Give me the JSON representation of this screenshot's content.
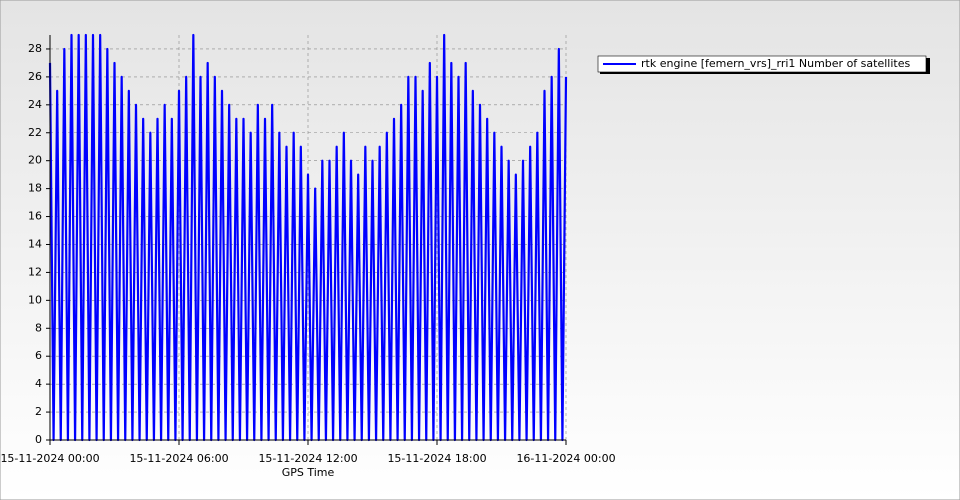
{
  "chart_data": {
    "type": "line",
    "x_label": "GPS Time",
    "x": [
      "15-11-2024 00:00",
      "15-11-2024 00:10",
      "15-11-2024 00:20",
      "15-11-2024 00:30",
      "15-11-2024 00:40",
      "15-11-2024 00:50",
      "15-11-2024 01:00",
      "15-11-2024 01:10",
      "15-11-2024 01:20",
      "15-11-2024 01:30",
      "15-11-2024 01:40",
      "15-11-2024 01:50",
      "15-11-2024 02:00",
      "15-11-2024 02:10",
      "15-11-2024 02:20",
      "15-11-2024 02:30",
      "15-11-2024 02:40",
      "15-11-2024 02:50",
      "15-11-2024 03:00",
      "15-11-2024 03:10",
      "15-11-2024 03:20",
      "15-11-2024 03:30",
      "15-11-2024 03:40",
      "15-11-2024 03:50",
      "15-11-2024 04:00",
      "15-11-2024 04:10",
      "15-11-2024 04:20",
      "15-11-2024 04:30",
      "15-11-2024 04:40",
      "15-11-2024 04:50",
      "15-11-2024 05:00",
      "15-11-2024 05:10",
      "15-11-2024 05:20",
      "15-11-2024 05:30",
      "15-11-2024 05:40",
      "15-11-2024 05:50",
      "15-11-2024 06:00",
      "15-11-2024 06:10",
      "15-11-2024 06:20",
      "15-11-2024 06:30",
      "15-11-2024 06:40",
      "15-11-2024 06:50",
      "15-11-2024 07:00",
      "15-11-2024 07:10",
      "15-11-2024 07:20",
      "15-11-2024 07:30",
      "15-11-2024 07:40",
      "15-11-2024 07:50",
      "15-11-2024 08:00",
      "15-11-2024 08:10",
      "15-11-2024 08:20",
      "15-11-2024 08:30",
      "15-11-2024 08:40",
      "15-11-2024 08:50",
      "15-11-2024 09:00",
      "15-11-2024 09:10",
      "15-11-2024 09:20",
      "15-11-2024 09:30",
      "15-11-2024 09:40",
      "15-11-2024 09:50",
      "15-11-2024 10:00",
      "15-11-2024 10:10",
      "15-11-2024 10:20",
      "15-11-2024 10:30",
      "15-11-2024 10:40",
      "15-11-2024 10:50",
      "15-11-2024 11:00",
      "15-11-2024 11:10",
      "15-11-2024 11:20",
      "15-11-2024 11:30",
      "15-11-2024 11:40",
      "15-11-2024 11:50",
      "15-11-2024 12:00",
      "15-11-2024 12:10",
      "15-11-2024 12:20",
      "15-11-2024 12:30",
      "15-11-2024 12:40",
      "15-11-2024 12:50",
      "15-11-2024 13:00",
      "15-11-2024 13:10",
      "15-11-2024 13:20",
      "15-11-2024 13:30",
      "15-11-2024 13:40",
      "15-11-2024 13:50",
      "15-11-2024 14:00",
      "15-11-2024 14:10",
      "15-11-2024 14:20",
      "15-11-2024 14:30",
      "15-11-2024 14:40",
      "15-11-2024 14:50",
      "15-11-2024 15:00",
      "15-11-2024 15:10",
      "15-11-2024 15:20",
      "15-11-2024 15:30",
      "15-11-2024 15:40",
      "15-11-2024 15:50",
      "15-11-2024 16:00",
      "15-11-2024 16:10",
      "15-11-2024 16:20",
      "15-11-2024 16:30",
      "15-11-2024 16:40",
      "15-11-2024 16:50",
      "15-11-2024 17:00",
      "15-11-2024 17:10",
      "15-11-2024 17:20",
      "15-11-2024 17:30",
      "15-11-2024 17:40",
      "15-11-2024 17:50",
      "15-11-2024 18:00",
      "15-11-2024 18:10",
      "15-11-2024 18:20",
      "15-11-2024 18:30",
      "15-11-2024 18:40",
      "15-11-2024 18:50",
      "15-11-2024 19:00",
      "15-11-2024 19:10",
      "15-11-2024 19:20",
      "15-11-2024 19:30",
      "15-11-2024 19:40",
      "15-11-2024 19:50",
      "15-11-2024 20:00",
      "15-11-2024 20:10",
      "15-11-2024 20:20",
      "15-11-2024 20:30",
      "15-11-2024 20:40",
      "15-11-2024 20:50",
      "15-11-2024 21:00",
      "15-11-2024 21:10",
      "15-11-2024 21:20",
      "15-11-2024 21:30",
      "15-11-2024 21:40",
      "15-11-2024 21:50",
      "15-11-2024 22:00",
      "15-11-2024 22:10",
      "15-11-2024 22:20",
      "15-11-2024 22:30",
      "15-11-2024 22:40",
      "15-11-2024 22:50",
      "15-11-2024 23:00",
      "15-11-2024 23:10",
      "15-11-2024 23:20",
      "15-11-2024 23:30",
      "15-11-2024 23:40",
      "15-11-2024 23:50",
      "16-11-2024 00:00"
    ],
    "series": [
      {
        "name": "rtk engine [femern_vrs]_rri1 Number of satellites",
        "color": "#0000ff",
        "values": [
          27,
          0,
          25,
          0,
          28,
          0,
          29,
          0,
          29,
          0,
          29,
          0,
          29,
          0,
          29,
          0,
          28,
          0,
          27,
          0,
          26,
          0,
          25,
          0,
          24,
          0,
          23,
          0,
          22,
          0,
          23,
          0,
          24,
          0,
          23,
          0,
          25,
          0,
          26,
          0,
          29,
          0,
          26,
          0,
          27,
          0,
          26,
          0,
          25,
          0,
          24,
          0,
          23,
          0,
          23,
          0,
          22,
          0,
          24,
          0,
          23,
          0,
          24,
          0,
          22,
          0,
          21,
          0,
          22,
          0,
          21,
          0,
          19,
          0,
          18,
          0,
          20,
          0,
          20,
          0,
          21,
          0,
          22,
          0,
          20,
          0,
          19,
          0,
          21,
          0,
          20,
          0,
          21,
          0,
          22,
          0,
          23,
          0,
          24,
          0,
          26,
          0,
          26,
          0,
          25,
          0,
          27,
          0,
          26,
          0,
          29,
          0,
          27,
          0,
          26,
          0,
          27,
          0,
          25,
          0,
          24,
          0,
          23,
          0,
          22,
          0,
          21,
          0,
          20,
          0,
          19,
          0,
          20,
          0,
          21,
          0,
          22,
          0,
          25,
          0,
          26,
          0,
          28,
          0,
          26
        ]
      }
    ],
    "xlim": [
      "15-11-2024 00:00",
      "16-11-2024 00:00"
    ],
    "xticks": [
      "15-11-2024 00:00",
      "15-11-2024 06:00",
      "15-11-2024 12:00",
      "15-11-2024 18:00",
      "16-11-2024 00:00"
    ],
    "ylim": [
      0,
      29
    ],
    "yticks": [
      0,
      2,
      4,
      6,
      8,
      10,
      12,
      14,
      16,
      18,
      20,
      22,
      24,
      26,
      28
    ],
    "grid": true,
    "legend": "upper right"
  }
}
